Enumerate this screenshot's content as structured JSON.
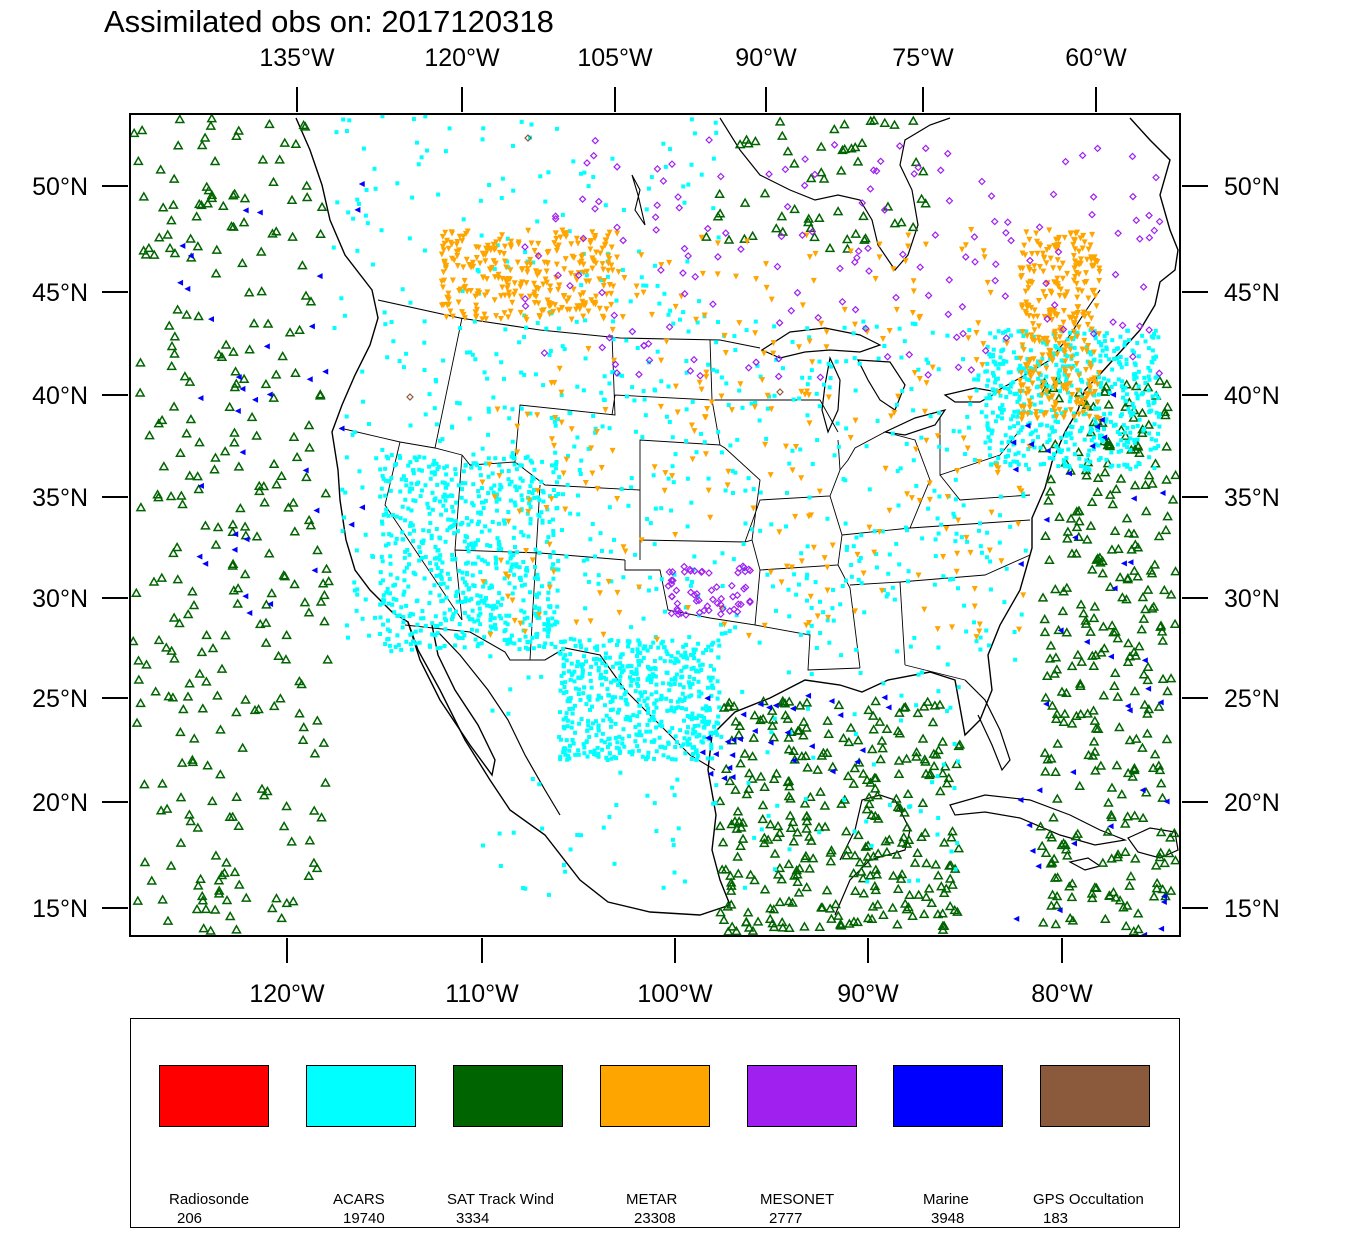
{
  "title": "Assimilated obs on: 2017120318",
  "map": {
    "top_axis_ticks": [
      "135°W",
      "120°W",
      "105°W",
      "90°W",
      "75°W",
      "60°W"
    ],
    "bottom_axis_ticks": [
      "120°W",
      "110°W",
      "100°W",
      "90°W",
      "80°W"
    ],
    "lat_ticks": [
      "50°N",
      "45°N",
      "40°N",
      "35°N",
      "30°N",
      "25°N",
      "20°N",
      "15°N"
    ],
    "land_outline_color": "#000000"
  },
  "legend": {
    "items": [
      {
        "name": "Radiosonde",
        "count": "206",
        "color": "#ff0000"
      },
      {
        "name": "ACARS",
        "count": "19740",
        "color": "#00ffff"
      },
      {
        "name": "SAT Track Wind",
        "count": "3334",
        "color": "#006400"
      },
      {
        "name": "METAR",
        "count": "23308",
        "color": "#ffa500"
      },
      {
        "name": "MESONET",
        "count": "2777",
        "color": "#a020f0"
      },
      {
        "name": "Marine",
        "count": "3948",
        "color": "#0000ff"
      },
      {
        "name": "GPS Occultation",
        "count": "183",
        "color": "#8b5a3c"
      }
    ]
  }
}
